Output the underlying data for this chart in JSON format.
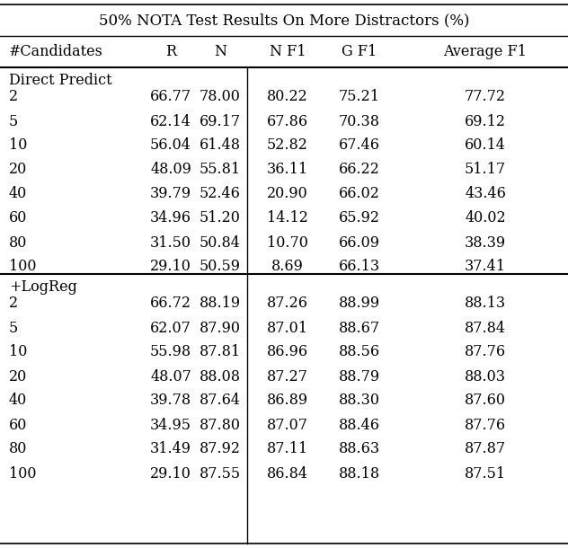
{
  "title": "50% NOTA Test Results On More Distractors (%)",
  "col_labels": [
    "#Candidates",
    "R",
    "N",
    "N F1",
    "G F1",
    "Average F1"
  ],
  "section1_label": "Direct Predict",
  "section2_label": "+LogReg",
  "direct_predict": [
    {
      "cand": "2",
      "R": "66.77",
      "N": "78.00",
      "NF1": "80.22",
      "GF1": "75.21",
      "AvgF1": "77.72"
    },
    {
      "cand": "5",
      "R": "62.14",
      "N": "69.17",
      "NF1": "67.86",
      "GF1": "70.38",
      "AvgF1": "69.12"
    },
    {
      "cand": "10",
      "R": "56.04",
      "N": "61.48",
      "NF1": "52.82",
      "GF1": "67.46",
      "AvgF1": "60.14"
    },
    {
      "cand": "20",
      "R": "48.09",
      "N": "55.81",
      "NF1": "36.11",
      "GF1": "66.22",
      "AvgF1": "51.17"
    },
    {
      "cand": "40",
      "R": "39.79",
      "N": "52.46",
      "NF1": "20.90",
      "GF1": "66.02",
      "AvgF1": "43.46"
    },
    {
      "cand": "60",
      "R": "34.96",
      "N": "51.20",
      "NF1": "14.12",
      "GF1": "65.92",
      "AvgF1": "40.02"
    },
    {
      "cand": "80",
      "R": "31.50",
      "N": "50.84",
      "NF1": "10.70",
      "GF1": "66.09",
      "AvgF1": "38.39"
    },
    {
      "cand": "100",
      "R": "29.10",
      "N": "50.59",
      "NF1": "8.69",
      "GF1": "66.13",
      "AvgF1": "37.41"
    }
  ],
  "logreg": [
    {
      "cand": "2",
      "R": "66.72",
      "N": "88.19",
      "NF1": "87.26",
      "GF1": "88.99",
      "AvgF1": "88.13"
    },
    {
      "cand": "5",
      "R": "62.07",
      "N": "87.90",
      "NF1": "87.01",
      "GF1": "88.67",
      "AvgF1": "87.84"
    },
    {
      "cand": "10",
      "R": "55.98",
      "N": "87.81",
      "NF1": "86.96",
      "GF1": "88.56",
      "AvgF1": "87.76"
    },
    {
      "cand": "20",
      "R": "48.07",
      "N": "88.08",
      "NF1": "87.27",
      "GF1": "88.79",
      "AvgF1": "88.03"
    },
    {
      "cand": "40",
      "R": "39.78",
      "N": "87.64",
      "NF1": "86.89",
      "GF1": "88.30",
      "AvgF1": "87.60"
    },
    {
      "cand": "60",
      "R": "34.95",
      "N": "87.80",
      "NF1": "87.07",
      "GF1": "88.46",
      "AvgF1": "87.76"
    },
    {
      "cand": "80",
      "R": "31.49",
      "N": "87.92",
      "NF1": "87.11",
      "GF1": "88.63",
      "AvgF1": "87.87"
    },
    {
      "cand": "100",
      "R": "29.10",
      "N": "87.55",
      "NF1": "86.84",
      "GF1": "88.18",
      "AvgF1": "87.51"
    }
  ],
  "figsize": [
    6.32,
    6.1
  ],
  "dpi": 100,
  "bg_color": "#ffffff",
  "text_color": "#000000",
  "font_size": 11.5,
  "title_font_size": 12.0
}
